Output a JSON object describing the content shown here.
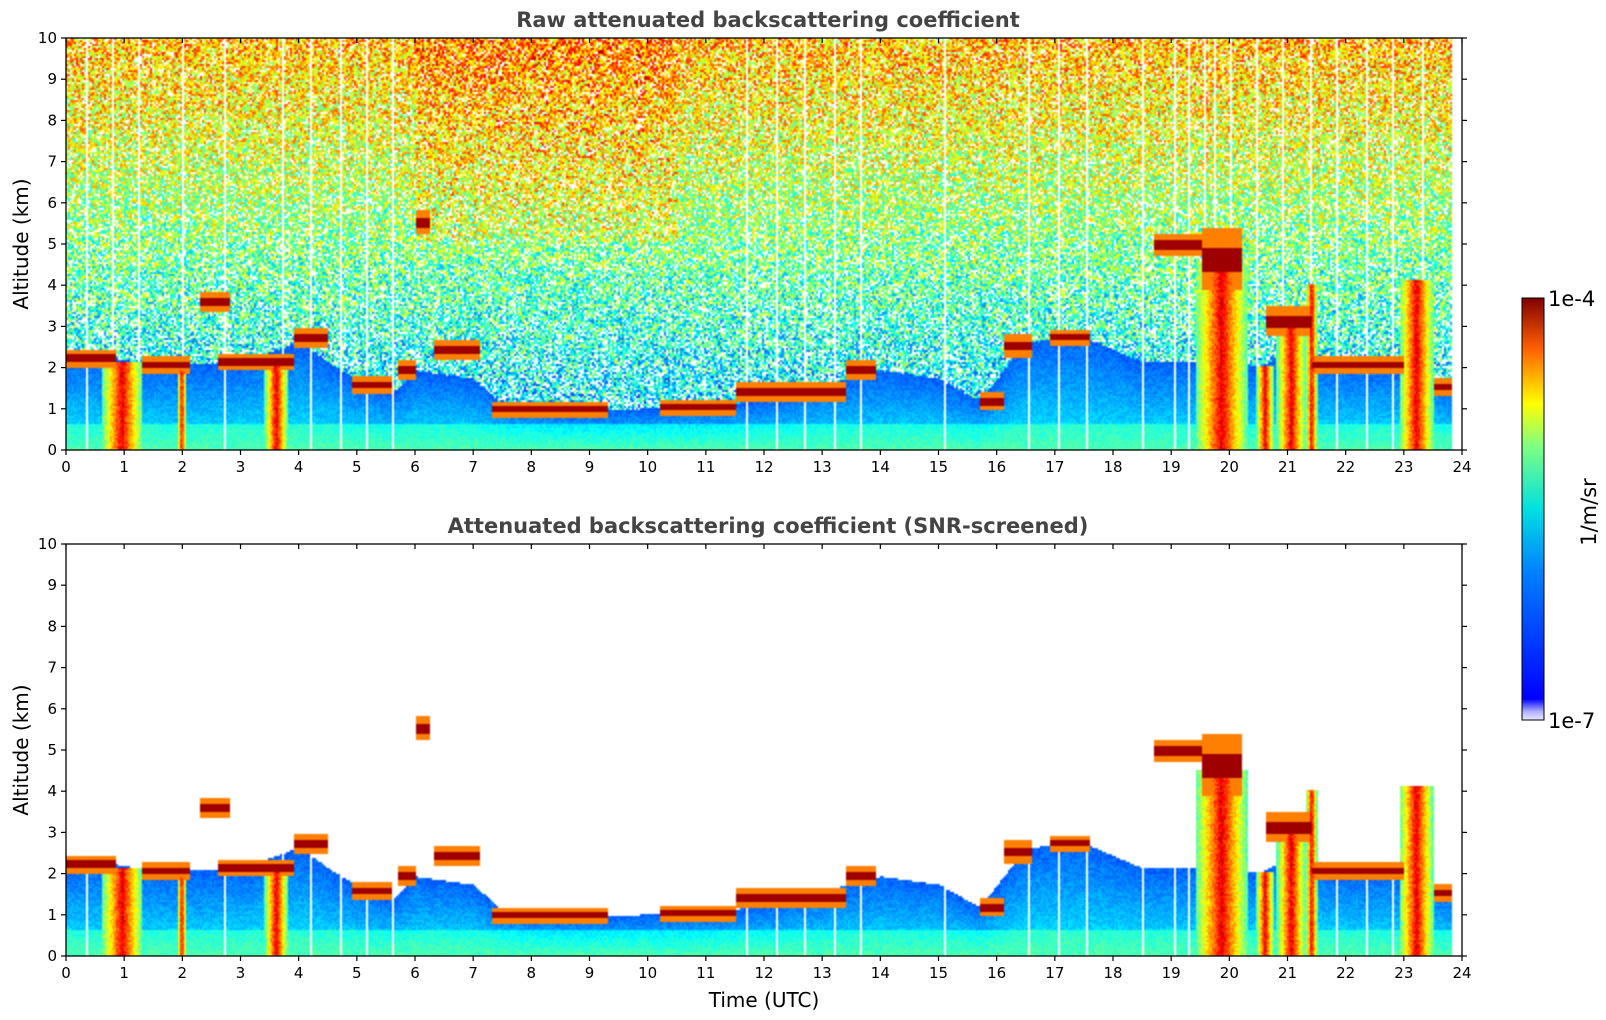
{
  "chart_data": [
    {
      "type": "heatmap",
      "title": "Raw attenuated backscattering coefficient",
      "xlabel": "",
      "ylabel": "Altitude (km)",
      "xlim": [
        0,
        24
      ],
      "ylim": [
        0,
        10
      ],
      "x_ticks": [
        "0",
        "1",
        "2",
        "3",
        "4",
        "5",
        "6",
        "7",
        "8",
        "9",
        "10",
        "11",
        "12",
        "13",
        "14",
        "15",
        "16",
        "17",
        "18",
        "19",
        "20",
        "21",
        "22",
        "23",
        "24"
      ],
      "y_ticks": [
        "0",
        "1",
        "2",
        "3",
        "4",
        "5",
        "6",
        "7",
        "8",
        "9",
        "10"
      ],
      "screened": false
    },
    {
      "type": "heatmap",
      "title": "Attenuated backscattering coefficient (SNR-screened)",
      "xlabel": "Time (UTC)",
      "ylabel": "Altitude (km)",
      "xlim": [
        0,
        24
      ],
      "ylim": [
        0,
        10
      ],
      "x_ticks": [
        "0",
        "1",
        "2",
        "3",
        "4",
        "5",
        "6",
        "7",
        "8",
        "9",
        "10",
        "11",
        "12",
        "13",
        "14",
        "15",
        "16",
        "17",
        "18",
        "19",
        "20",
        "21",
        "22",
        "23",
        "24"
      ],
      "y_ticks": [
        "0",
        "1",
        "2",
        "3",
        "4",
        "5",
        "6",
        "7",
        "8",
        "9",
        "10"
      ],
      "screened": true
    }
  ],
  "colorbar": {
    "max_label": "1e-4",
    "min_label": "1e-7",
    "unit_label": "1/m/sr",
    "colormap": "jet",
    "scale": "log"
  },
  "features": {
    "boundary_layer_top_km": [
      [
        0,
        2.2
      ],
      [
        0.8,
        2.2
      ],
      [
        1.5,
        2.05
      ],
      [
        2,
        2.05
      ],
      [
        3,
        2.1
      ],
      [
        4,
        2.6
      ],
      [
        4.6,
        2.0
      ],
      [
        5,
        1.7
      ],
      [
        5.6,
        1.35
      ],
      [
        6,
        1.9
      ],
      [
        7,
        1.7
      ],
      [
        7.5,
        1.05
      ],
      [
        8,
        0.95
      ],
      [
        9,
        0.9
      ],
      [
        9.5,
        0.95
      ],
      [
        10,
        0.98
      ],
      [
        11,
        1.0
      ],
      [
        12,
        1.2
      ],
      [
        13,
        1.55
      ],
      [
        14,
        1.9
      ],
      [
        15,
        1.7
      ],
      [
        15.7,
        1.15
      ],
      [
        16.5,
        2.6
      ],
      [
        17.5,
        2.7
      ],
      [
        18.5,
        2.1
      ],
      [
        19.5,
        2.1
      ],
      [
        20.5,
        2.0
      ],
      [
        21,
        2.3
      ],
      [
        22,
        2.0
      ],
      [
        23,
        2.05
      ],
      [
        23.8,
        1.5
      ]
    ],
    "cloud_segments": [
      {
        "t0": 0.0,
        "t1": 0.85,
        "z": 2.2,
        "w": 0.07
      },
      {
        "t0": 1.3,
        "t1": 2.1,
        "z": 2.05,
        "w": 0.07
      },
      {
        "t0": 2.3,
        "t1": 2.8,
        "z": 3.55,
        "w": 0.08
      },
      {
        "t0": 2.6,
        "t1": 3.9,
        "z": 2.12,
        "w": 0.07
      },
      {
        "t0": 3.9,
        "t1": 4.5,
        "z": 2.7,
        "w": 0.08
      },
      {
        "t0": 4.9,
        "t1": 5.6,
        "z": 1.55,
        "w": 0.07
      },
      {
        "t0": 5.7,
        "t1": 6.0,
        "z": 1.9,
        "w": 0.08
      },
      {
        "t0": 6.0,
        "t1": 6.25,
        "z": 5.5,
        "w": 0.1
      },
      {
        "t0": 6.3,
        "t1": 7.1,
        "z": 2.4,
        "w": 0.08
      },
      {
        "t0": 7.3,
        "t1": 9.3,
        "z": 0.95,
        "w": 0.06
      },
      {
        "t0": 10.2,
        "t1": 11.5,
        "z": 1.0,
        "w": 0.06
      },
      {
        "t0": 11.5,
        "t1": 13.4,
        "z": 1.4,
        "w": 0.08
      },
      {
        "t0": 13.4,
        "t1": 13.9,
        "z": 1.9,
        "w": 0.08
      },
      {
        "t0": 15.7,
        "t1": 16.1,
        "z": 1.15,
        "w": 0.07
      },
      {
        "t0": 16.1,
        "t1": 16.6,
        "z": 2.5,
        "w": 0.1
      },
      {
        "t0": 16.9,
        "t1": 17.6,
        "z": 2.7,
        "w": 0.06
      },
      {
        "t0": 18.7,
        "t1": 19.5,
        "z": 4.95,
        "w": 0.09
      },
      {
        "t0": 19.5,
        "t1": 20.2,
        "z": 4.6,
        "w": 0.25
      },
      {
        "t0": 20.6,
        "t1": 21.4,
        "z": 3.1,
        "w": 0.12
      },
      {
        "t0": 21.4,
        "t1": 23.0,
        "z": 2.05,
        "w": 0.07
      },
      {
        "t0": 23.5,
        "t1": 23.8,
        "z": 1.5,
        "w": 0.07
      }
    ],
    "precip_columns": [
      {
        "t0": 0.6,
        "t1": 1.3,
        "ztop": 2.1
      },
      {
        "t0": 1.9,
        "t1": 2.05,
        "ztop": 1.9
      },
      {
        "t0": 3.4,
        "t1": 3.8,
        "ztop": 2.0
      },
      {
        "t0": 19.4,
        "t1": 20.3,
        "ztop": 4.5
      },
      {
        "t0": 20.45,
        "t1": 20.75,
        "ztop": 2.0
      },
      {
        "t0": 20.8,
        "t1": 21.3,
        "ztop": 3.2
      },
      {
        "t0": 21.3,
        "t1": 21.5,
        "ztop": 4.0
      },
      {
        "t0": 22.9,
        "t1": 23.5,
        "ztop": 4.1
      }
    ],
    "gap_times": [
      0.33,
      0.8,
      1.25,
      2.0,
      2.7,
      3.7,
      4.2,
      4.7,
      5.15,
      5.6,
      11.7,
      12.2,
      12.7,
      13.2,
      13.65,
      15.1,
      16.55,
      17.05,
      17.55,
      18.5,
      19.05,
      19.3,
      19.55,
      19.75,
      20.0,
      20.45,
      20.9,
      21.4,
      21.85,
      22.35,
      22.8,
      23.3
    ]
  }
}
